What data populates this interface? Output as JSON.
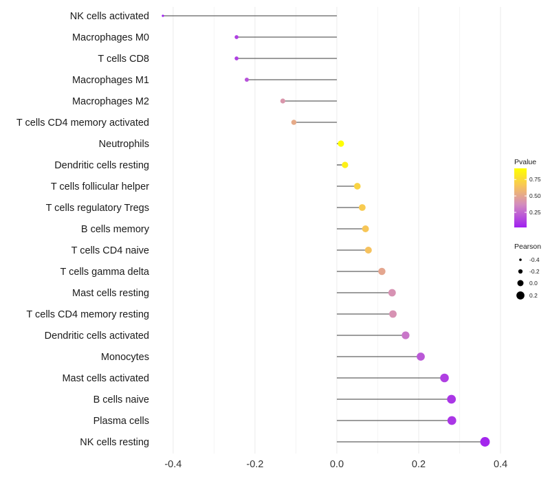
{
  "chart_data": {
    "type": "lollipop",
    "categories": [
      "NK cells activated",
      "Macrophages M0",
      "T cells CD8",
      "Macrophages M1",
      "Macrophages M2",
      "T cells CD4 memory activated",
      "Neutrophils",
      "Dendritic cells resting",
      "T cells follicular helper",
      "T cells regulatory  Tregs ",
      "B cells memory",
      "T cells CD4 naive",
      "T cells gamma delta",
      "Mast cells resting",
      "T cells CD4 memory resting",
      "Dendritic cells activated",
      "Monocytes",
      "Mast cells activated",
      "B cells naive",
      "Plasma cells",
      "NK cells resting"
    ],
    "pearson": [
      -0.425,
      -0.245,
      -0.245,
      -0.22,
      -0.132,
      -0.105,
      0.01,
      0.02,
      0.05,
      0.062,
      0.07,
      0.077,
      0.11,
      0.135,
      0.137,
      0.168,
      0.205,
      0.263,
      0.28,
      0.281,
      0.362
    ],
    "pvalue": [
      0.02,
      0.12,
      0.12,
      0.18,
      0.42,
      0.52,
      0.92,
      0.85,
      0.72,
      0.68,
      0.66,
      0.64,
      0.5,
      0.4,
      0.4,
      0.3,
      0.2,
      0.12,
      0.09,
      0.09,
      0.04
    ],
    "xlim": [
      -0.44,
      0.42
    ],
    "xticks": [
      -0.4,
      -0.2,
      0.0,
      0.2,
      0.4
    ],
    "xtick_labels": [
      "-0.4",
      "-0.2",
      "0.0",
      "0.2",
      "0.4"
    ],
    "xlabel": "",
    "ylabel": "",
    "grid": true,
    "legend_color": {
      "title": "Pvalue",
      "ticks": [
        0.25,
        0.5,
        0.75
      ],
      "tick_labels": [
        "0.25",
        "0.50",
        "0.75"
      ],
      "range": [
        0.02,
        0.92
      ],
      "colors": [
        "#a020f0",
        "#d28ac0",
        "#f7c45a",
        "#ffff00"
      ]
    },
    "legend_size": {
      "title": "Pearson",
      "values": [
        -0.4,
        -0.2,
        0.0,
        0.2
      ],
      "labels": [
        "-0.4",
        "-0.2",
        "0.0",
        "0.2"
      ]
    },
    "stem_color": "#3a3a3a",
    "grid_color": "#ebebeb"
  }
}
